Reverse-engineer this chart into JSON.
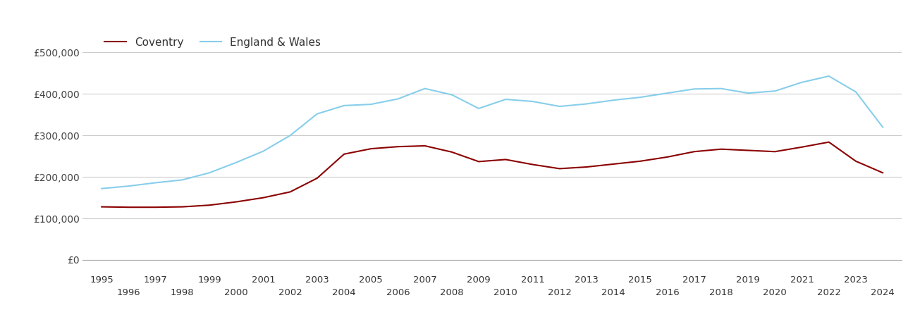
{
  "coventry_years": [
    1995,
    1996,
    1997,
    1998,
    1999,
    2000,
    2001,
    2002,
    2003,
    2004,
    2005,
    2006,
    2007,
    2008,
    2009,
    2010,
    2011,
    2012,
    2013,
    2014,
    2015,
    2016,
    2017,
    2018,
    2019,
    2020,
    2021,
    2022,
    2023,
    2024
  ],
  "coventry_values": [
    128000,
    127000,
    127000,
    128000,
    132000,
    140000,
    150000,
    164000,
    197000,
    255000,
    268000,
    273000,
    275000,
    260000,
    237000,
    242000,
    230000,
    220000,
    224000,
    231000,
    238000,
    248000,
    261000,
    267000,
    264000,
    261000,
    272000,
    284000,
    238000,
    210000
  ],
  "england_years": [
    1995,
    1996,
    1997,
    1998,
    1999,
    2000,
    2001,
    2002,
    2003,
    2004,
    2005,
    2006,
    2007,
    2008,
    2009,
    2010,
    2011,
    2012,
    2013,
    2014,
    2015,
    2016,
    2017,
    2018,
    2019,
    2020,
    2021,
    2022,
    2023,
    2024
  ],
  "england_values": [
    172000,
    178000,
    186000,
    193000,
    210000,
    235000,
    262000,
    300000,
    352000,
    372000,
    375000,
    388000,
    413000,
    398000,
    365000,
    387000,
    382000,
    370000,
    376000,
    385000,
    392000,
    402000,
    412000,
    413000,
    402000,
    407000,
    428000,
    443000,
    405000,
    320000
  ],
  "coventry_color": "#8B0000",
  "england_color": "#87CEEB",
  "coventry_label": "Coventry",
  "england_label": "England & Wales",
  "ylim": [
    0,
    550000
  ],
  "yticks": [
    0,
    100000,
    200000,
    300000,
    400000,
    500000
  ],
  "ytick_labels": [
    "£0",
    "£100,000",
    "£200,000",
    "£300,000",
    "£400,000",
    "£500,000"
  ],
  "background_color": "#ffffff",
  "grid_color": "#cccccc",
  "line_width": 1.5
}
